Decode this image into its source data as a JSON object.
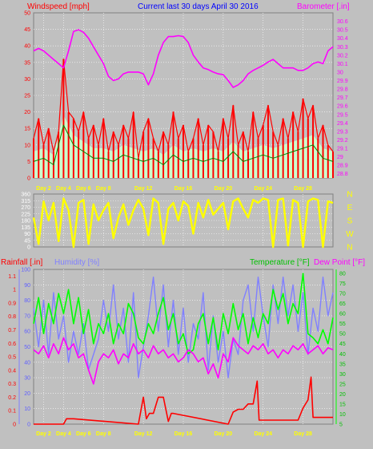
{
  "header": {
    "windspeed_label": "Windspeed [mph]",
    "title": "Current last 30 days April 30 2016",
    "barometer_label": "Barometer [.in]",
    "rainfall_label": "Rainfall [.in]",
    "humidity_label": "Humidity [%]",
    "temperature_label": "Temperature [°F]",
    "dewpoint_label": "Dew Point [°F]"
  },
  "colors": {
    "background": "#c0c0c0",
    "plot_bg": "#c0c0c0",
    "grid": "#ffffff",
    "wind_gust": "#ff0000",
    "wind_avg": "#008000",
    "wind_fill": "#ccffcc",
    "wind_light": "#a0a0a0",
    "barometer": "#ff00ff",
    "direction": "#ffff00",
    "rainfall": "#ff0000",
    "humidity": "#8080ff",
    "temperature": "#00ff00",
    "dewpoint": "#ff00ff",
    "day_labels": "#ffff00"
  },
  "chart_data": [
    {
      "type": "line",
      "name": "wind-barometer",
      "series_labels": [
        "Windspeed [mph]",
        "Barometer [.in]"
      ],
      "x_tick_labels": [
        "Day 2",
        "Day 4",
        "Day 6",
        "Day 8",
        "Day 12",
        "Day 16",
        "Day 20",
        "Day 24",
        "Day 28"
      ],
      "x_tick_days": [
        2,
        4,
        6,
        8,
        12,
        16,
        20,
        24,
        28
      ],
      "xlim": [
        1,
        31
      ],
      "left_axis": {
        "ticks": [
          "0",
          "5",
          "10",
          "15",
          "20",
          "25",
          "30",
          "35",
          "40",
          "45",
          "50"
        ],
        "ylim": [
          0,
          50
        ]
      },
      "right_axis": {
        "ticks": [
          "28.8",
          "28.9",
          "29",
          "29.1",
          "29.2",
          "29.3",
          "29.4",
          "29.5",
          "29.6",
          "29.7",
          "29.8",
          "29.9",
          "30",
          "30.1",
          "30.2",
          "30.3",
          "30.4",
          "30.5",
          "30.6"
        ],
        "ylim": [
          28.75,
          30.7
        ]
      },
      "barometer": {
        "x": [
          1,
          1.5,
          2,
          2.5,
          3,
          3.5,
          4,
          4.5,
          5,
          5.5,
          6,
          6.5,
          7,
          7.5,
          8,
          8.5,
          9,
          9.5,
          10,
          10.5,
          11,
          11.5,
          12,
          12.5,
          13,
          13.5,
          14,
          14.5,
          15,
          15.5,
          16,
          16.5,
          17,
          17.5,
          18,
          18.5,
          19,
          19.5,
          20,
          20.5,
          21,
          21.5,
          22,
          22.5,
          23,
          23.5,
          24,
          24.5,
          25,
          25.5,
          26,
          26.5,
          27,
          27.5,
          28,
          28.5,
          29,
          29.5,
          30,
          30.5,
          31
        ],
        "values": [
          30.25,
          30.28,
          30.25,
          30.2,
          30.15,
          30.1,
          30.05,
          30.25,
          30.48,
          30.5,
          30.47,
          30.4,
          30.3,
          30.2,
          30.1,
          29.95,
          29.9,
          29.92,
          29.98,
          30.0,
          30.0,
          30.0,
          29.98,
          29.85,
          29.98,
          30.2,
          30.35,
          30.42,
          30.42,
          30.43,
          30.42,
          30.35,
          30.2,
          30.12,
          30.05,
          30.03,
          30.0,
          29.98,
          29.97,
          29.9,
          29.82,
          29.85,
          29.9,
          29.98,
          30.02,
          30.05,
          30.08,
          30.12,
          30.15,
          30.1,
          30.05,
          30.05,
          30.05,
          30.02,
          30.02,
          30.05,
          30.1,
          30.12,
          30.1,
          30.25,
          30.3
        ]
      },
      "wind_gust": {
        "x": [
          1,
          1.5,
          2,
          2.5,
          3,
          3.5,
          4,
          4.5,
          5,
          5.5,
          6,
          6.5,
          7,
          7.5,
          8,
          8.5,
          9,
          9.5,
          10,
          10.5,
          11,
          11.5,
          12,
          12.5,
          13,
          13.5,
          14,
          14.5,
          15,
          15.5,
          16,
          16.5,
          17,
          17.5,
          18,
          18.5,
          19,
          19.5,
          20,
          20.5,
          21,
          21.5,
          22,
          22.5,
          23,
          23.5,
          24,
          24.5,
          25,
          25.5,
          26,
          26.5,
          27,
          27.5,
          28,
          28.5,
          29,
          29.5,
          30,
          30.5,
          31
        ],
        "values": [
          12,
          18,
          10,
          15,
          8,
          14,
          36,
          20,
          18,
          14,
          20,
          12,
          16,
          10,
          18,
          8,
          14,
          10,
          16,
          12,
          20,
          6,
          14,
          18,
          12,
          8,
          14,
          10,
          20,
          12,
          16,
          8,
          12,
          18,
          10,
          16,
          14,
          8,
          18,
          12,
          22,
          10,
          14,
          8,
          20,
          12,
          16,
          22,
          14,
          10,
          18,
          12,
          20,
          14,
          24,
          18,
          22,
          12,
          16,
          10,
          8
        ]
      },
      "wind_avg": {
        "x": [
          1,
          2,
          3,
          4,
          5,
          6,
          7,
          8,
          9,
          10,
          11,
          12,
          13,
          14,
          15,
          16,
          17,
          18,
          19,
          20,
          21,
          22,
          23,
          24,
          25,
          26,
          27,
          28,
          29,
          30,
          31
        ],
        "values": [
          5,
          6,
          4,
          16,
          10,
          8,
          6,
          6,
          5,
          7,
          6,
          5,
          6,
          4,
          7,
          5,
          6,
          5,
          6,
          5,
          8,
          5,
          6,
          7,
          6,
          7,
          8,
          9,
          10,
          6,
          5
        ]
      }
    },
    {
      "type": "line",
      "name": "wind-direction",
      "left_axis": {
        "ticks": [
          "0",
          "45",
          "90",
          "135",
          "180",
          "225",
          "270",
          "315",
          "360"
        ],
        "ylim": [
          0,
          360
        ]
      },
      "right_axis": {
        "ticks": [
          "N",
          "W",
          "S",
          "E",
          "N"
        ]
      },
      "x_tick_days": [
        2,
        4,
        6,
        8,
        12,
        16,
        20,
        24,
        28
      ],
      "xlim": [
        1,
        31
      ],
      "direction": {
        "x": [
          1,
          1.5,
          2,
          2.5,
          3,
          3.5,
          4,
          4.5,
          5,
          5.5,
          6,
          6.5,
          7,
          7.5,
          8,
          8.5,
          9,
          9.5,
          10,
          10.5,
          11,
          11.5,
          12,
          12.5,
          13,
          13.5,
          14,
          14.5,
          15,
          15.5,
          16,
          16.5,
          17,
          17.5,
          18,
          18.5,
          19,
          19.5,
          20,
          20.5,
          21,
          21.5,
          22,
          22.5,
          23,
          23.5,
          24,
          24.5,
          25,
          25.5,
          26,
          26.5,
          27,
          27.5,
          28,
          28.5,
          29,
          29.5,
          30,
          30.5,
          31
        ],
        "values": [
          200,
          20,
          310,
          180,
          300,
          40,
          330,
          250,
          0,
          300,
          320,
          20,
          290,
          180,
          250,
          300,
          60,
          200,
          290,
          150,
          250,
          320,
          260,
          80,
          330,
          300,
          20,
          260,
          300,
          180,
          310,
          280,
          90,
          300,
          200,
          320,
          220,
          260,
          300,
          120,
          310,
          330,
          260,
          200,
          320,
          300,
          330,
          320,
          0,
          320,
          330,
          10,
          320,
          300,
          0,
          310,
          330,
          320,
          0,
          310,
          300
        ]
      }
    },
    {
      "type": "line",
      "name": "rain-humidity-temperature",
      "series_labels": [
        "Rainfall [.in]",
        "Humidity [%]",
        "Temperature [°F]",
        "Dew Point [°F]"
      ],
      "x_tick_labels": [
        "Day 2",
        "Day 4",
        "Day 6",
        "Day 8",
        "Day 12",
        "Day 16",
        "Day 20",
        "Day 24",
        "Day 28"
      ],
      "x_tick_days": [
        2,
        4,
        6,
        8,
        12,
        16,
        20,
        24,
        28
      ],
      "xlim": [
        1,
        31
      ],
      "rain_axis": {
        "ticks": [
          "0",
          "0.1",
          "0.2",
          "0.3",
          "0.4",
          "0.5",
          "0.6",
          "0.7",
          "0.8",
          "0.9",
          "1",
          "1.1"
        ],
        "ylim": [
          0,
          1.15
        ]
      },
      "humidity_axis": {
        "ticks": [
          "0",
          "10",
          "20",
          "30",
          "40",
          "50",
          "60",
          "70",
          "80",
          "90",
          "100"
        ],
        "ylim": [
          0,
          100
        ]
      },
      "temperature_axis": {
        "ticks": [
          "5",
          "10",
          "15",
          "20",
          "25",
          "30",
          "35",
          "40",
          "45",
          "50",
          "55",
          "60",
          "65",
          "70",
          "75",
          "80"
        ],
        "ylim": [
          5,
          82
        ]
      },
      "rainfall": {
        "x": [
          1,
          4,
          4.3,
          5,
          11.5,
          12,
          12.3,
          12.6,
          13,
          13.5,
          14,
          14.5,
          14.8,
          15,
          20.5,
          21,
          21.5,
          22,
          22.5,
          23,
          23.4,
          23.6,
          24,
          27.5,
          28,
          28.5,
          28.8,
          29,
          29.5,
          30,
          31
        ],
        "values": [
          0,
          0,
          0.04,
          0.04,
          0,
          0.2,
          0.04,
          0.08,
          0.08,
          0.2,
          0.2,
          0.02,
          0.08,
          0.08,
          0,
          0.09,
          0.11,
          0.11,
          0.15,
          0.15,
          0.32,
          0.03,
          0.03,
          0.03,
          0.12,
          0.18,
          0.35,
          0.05,
          0.05,
          0.05,
          0.05
        ]
      },
      "humidity": {
        "x": [
          1,
          1.5,
          2,
          2.5,
          3,
          3.5,
          4,
          4.5,
          5,
          5.5,
          6,
          6.5,
          7,
          7.5,
          8,
          8.5,
          9,
          9.5,
          10,
          10.5,
          11,
          11.5,
          12,
          12.5,
          13,
          13.5,
          14,
          14.5,
          15,
          15.5,
          16,
          16.5,
          17,
          17.5,
          18,
          18.5,
          19,
          19.5,
          20,
          20.5,
          21,
          21.5,
          22,
          22.5,
          23,
          23.5,
          24,
          24.5,
          25,
          25.5,
          26,
          26.5,
          27,
          27.5,
          28,
          28.5,
          29,
          29.5,
          30,
          30.5,
          31
        ],
        "values": [
          75,
          50,
          80,
          45,
          85,
          55,
          70,
          40,
          60,
          45,
          65,
          35,
          45,
          55,
          80,
          60,
          90,
          55,
          75,
          40,
          85,
          30,
          50,
          70,
          95,
          60,
          90,
          50,
          80,
          45,
          75,
          40,
          65,
          55,
          85,
          35,
          70,
          40,
          60,
          30,
          55,
          45,
          80,
          90,
          60,
          95,
          70,
          50,
          90,
          65,
          95,
          70,
          90,
          60,
          85,
          45,
          75,
          60,
          95,
          70,
          85
        ]
      },
      "temperature": {
        "x": [
          1,
          1.5,
          2,
          2.5,
          3,
          3.5,
          4,
          4.5,
          5,
          5.5,
          6,
          6.5,
          7,
          7.5,
          8,
          8.5,
          9,
          9.5,
          10,
          10.5,
          11,
          11.5,
          12,
          12.5,
          13,
          13.5,
          14,
          14.5,
          15,
          15.5,
          16,
          16.5,
          17,
          17.5,
          18,
          18.5,
          19,
          19.5,
          20,
          20.5,
          21,
          21.5,
          22,
          22.5,
          23,
          23.5,
          24,
          24.5,
          25,
          25.5,
          26,
          26.5,
          27,
          27.5,
          28,
          28.5,
          29,
          29.5,
          30,
          30.5,
          31
        ],
        "values": [
          55,
          68,
          50,
          65,
          55,
          70,
          60,
          72,
          55,
          68,
          50,
          62,
          45,
          55,
          50,
          60,
          45,
          55,
          50,
          65,
          60,
          48,
          45,
          55,
          50,
          60,
          68,
          52,
          60,
          45,
          50,
          40,
          42,
          55,
          60,
          45,
          58,
          42,
          60,
          50,
          65,
          52,
          60,
          45,
          58,
          48,
          60,
          55,
          72,
          62,
          70,
          55,
          65,
          60,
          80,
          50,
          48,
          45,
          52,
          45,
          58
        ]
      },
      "dewpoint": {
        "x": [
          1,
          1.5,
          2,
          2.5,
          3,
          3.5,
          4,
          4.5,
          5,
          5.5,
          6,
          6.5,
          7,
          7.5,
          8,
          8.5,
          9,
          9.5,
          10,
          10.5,
          11,
          11.5,
          12,
          12.5,
          13,
          13.5,
          14,
          14.5,
          15,
          15.5,
          16,
          16.5,
          17,
          17.5,
          18,
          18.5,
          19,
          19.5,
          20,
          20.5,
          21,
          21.5,
          22,
          22.5,
          23,
          23.5,
          24,
          24.5,
          25,
          25.5,
          26,
          26.5,
          27,
          27.5,
          28,
          28.5,
          29,
          29.5,
          30,
          30.5,
          31
        ],
        "values": [
          42,
          40,
          44,
          38,
          45,
          40,
          48,
          42,
          45,
          38,
          40,
          32,
          25,
          36,
          40,
          38,
          42,
          35,
          40,
          38,
          45,
          40,
          42,
          38,
          44,
          40,
          42,
          38,
          40,
          36,
          38,
          42,
          40,
          36,
          38,
          30,
          35,
          28,
          40,
          36,
          48,
          44,
          42,
          40,
          44,
          42,
          45,
          40,
          42,
          38,
          42,
          40,
          44,
          42,
          45,
          40,
          42,
          44,
          40,
          43,
          42
        ]
      }
    }
  ]
}
